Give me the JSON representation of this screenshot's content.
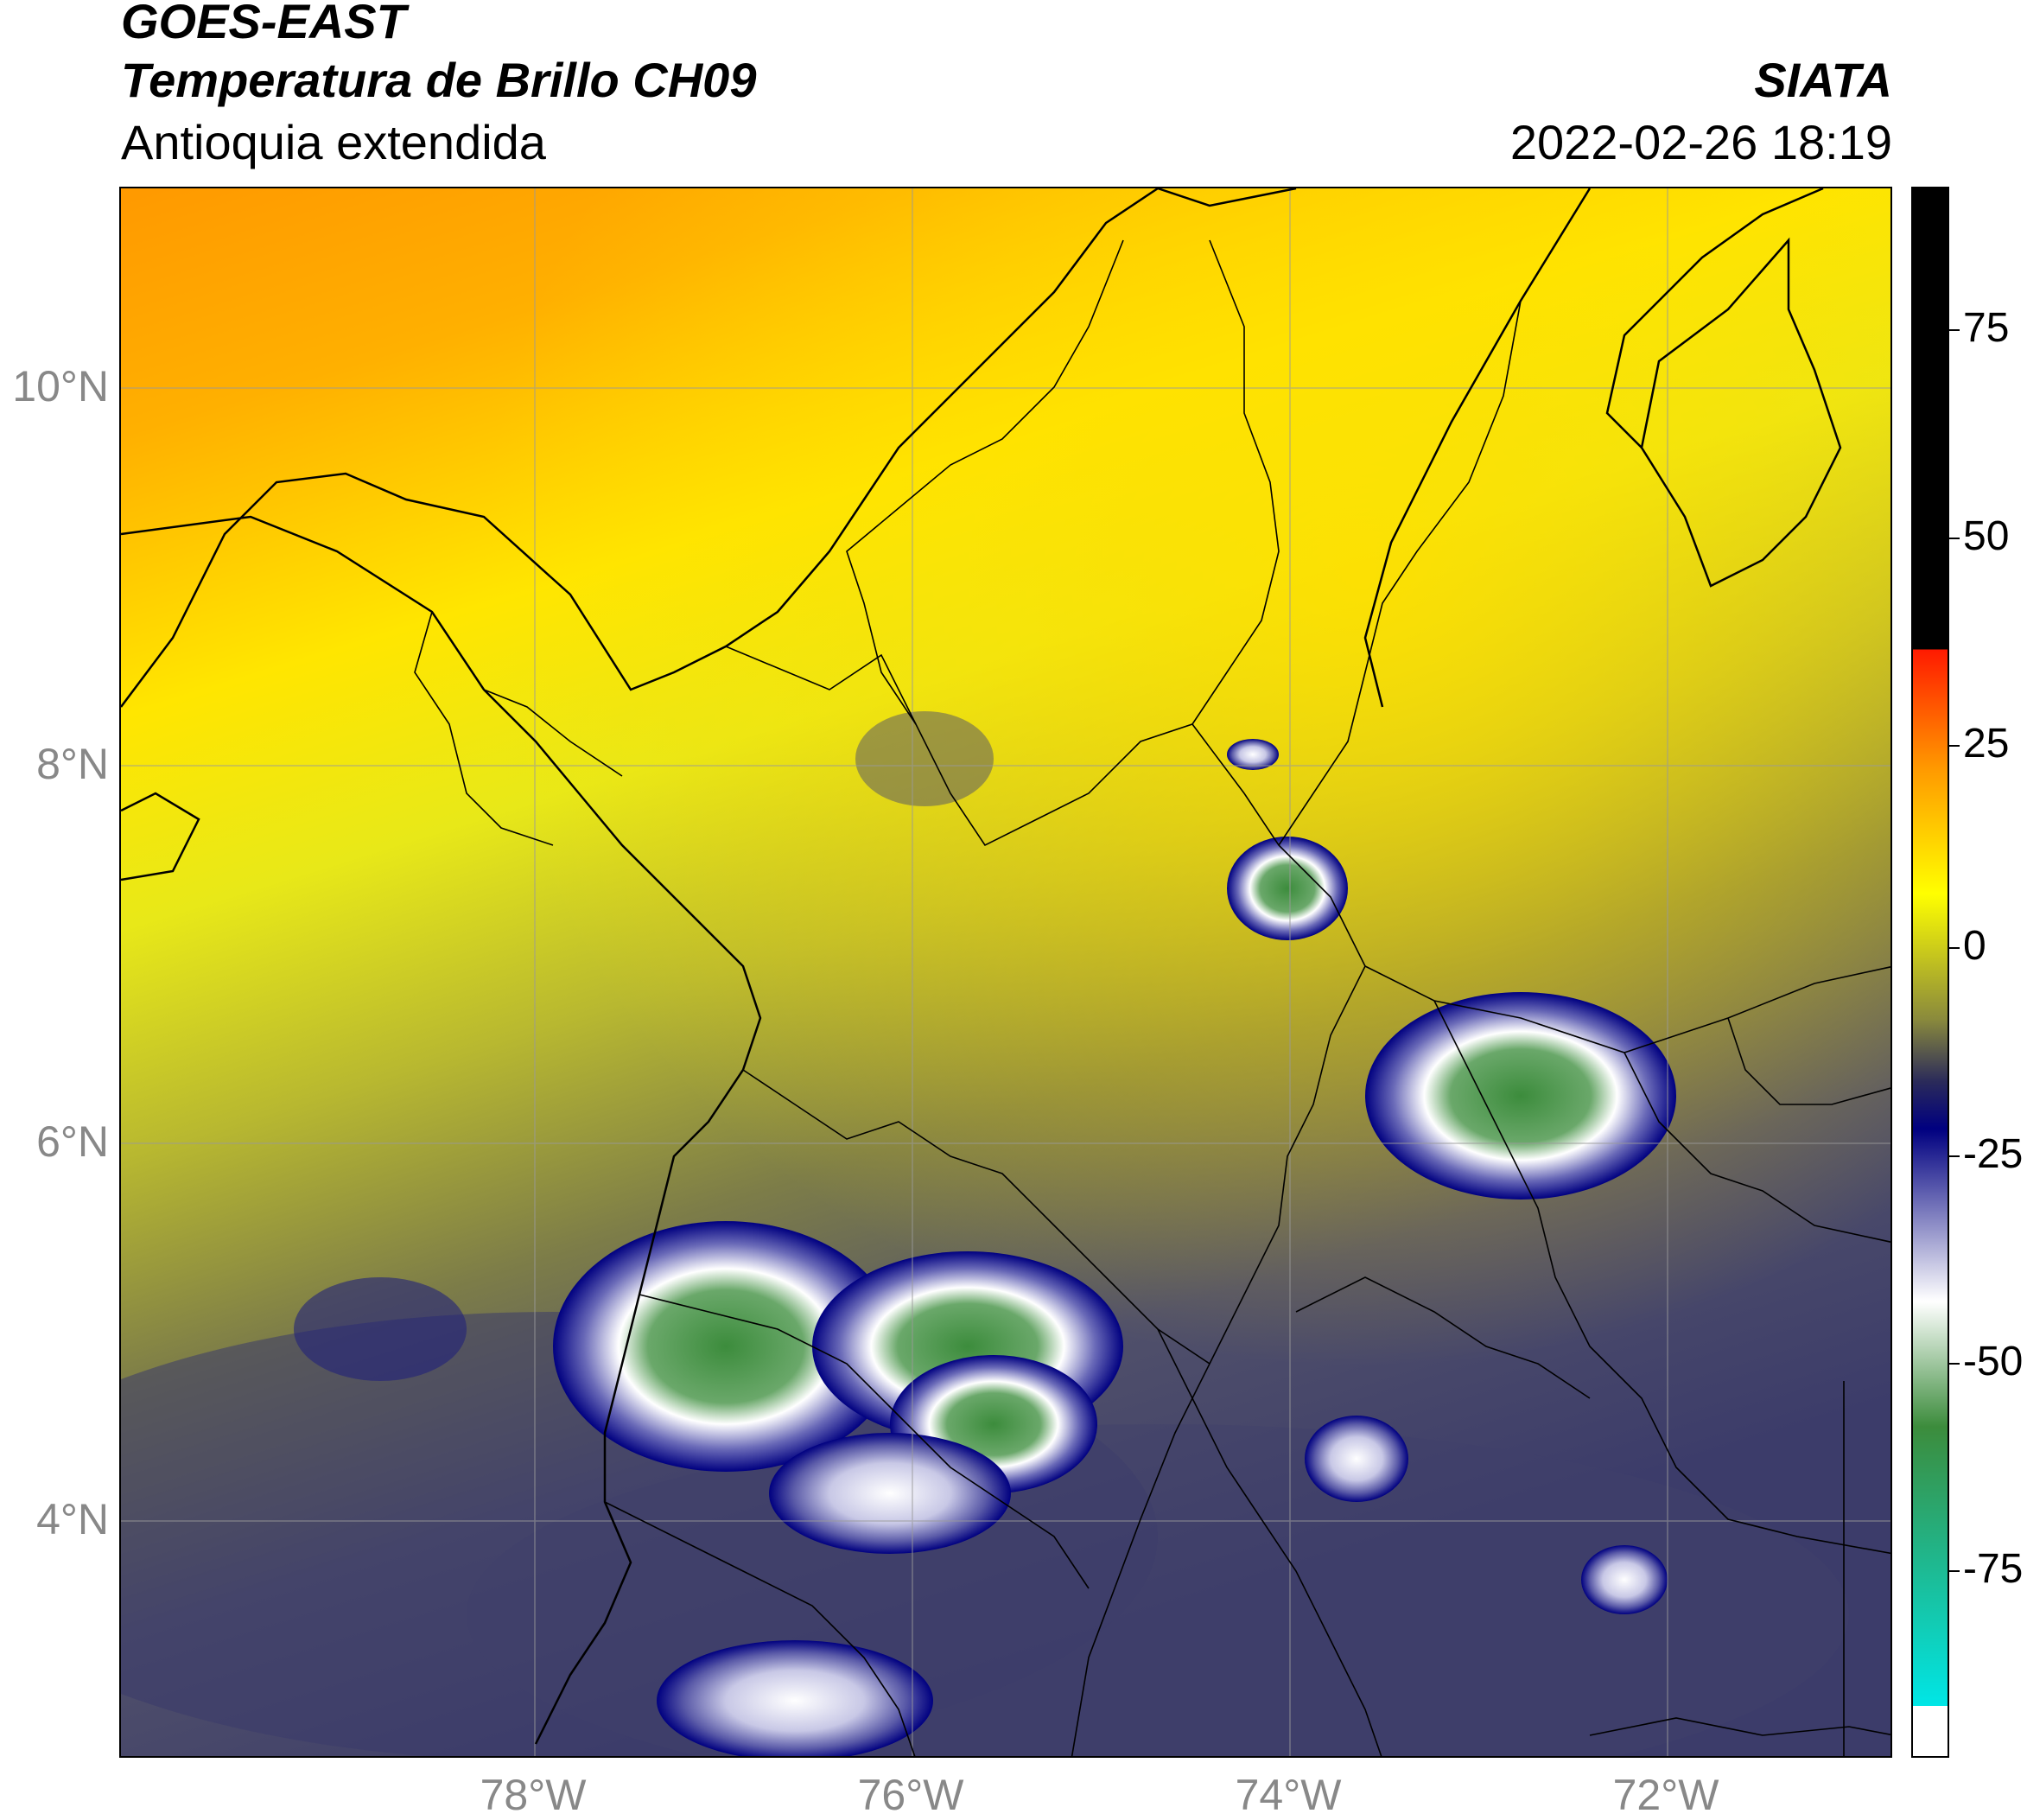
{
  "header": {
    "satellite": "GOES-EAST",
    "product": "Temperatura de Brillo CH09",
    "region": "Antioquia extendida",
    "organization": "SIATA",
    "datetime": "2022-02-26 18:19"
  },
  "map": {
    "lat_labels": [
      "10°N",
      "8°N",
      "6°N",
      "4°N"
    ],
    "lon_labels": [
      "78°W",
      "76°W",
      "74°W",
      "72°W"
    ]
  },
  "colorbar": {
    "ticks": [
      "75",
      "50",
      "25",
      "0",
      "-25",
      "-50",
      "-75"
    ],
    "colors": {
      "black": "#000000",
      "red": "#ff1a00",
      "orange": "#ff9900",
      "yellow": "#ffff00",
      "olive": "#8a8a3c",
      "dark-navy": "#2a2a5a",
      "navy": "#000080",
      "white": "#ffffff",
      "green": "#3c8c3c",
      "cyan": "#00e6e6"
    }
  }
}
